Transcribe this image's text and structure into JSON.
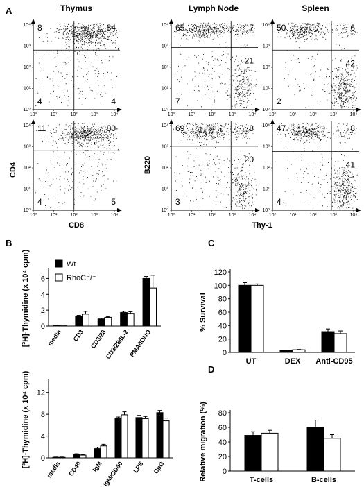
{
  "panel_a": {
    "letter": "A",
    "columns": [
      "Thymus",
      "Lymph Node",
      "Spleen"
    ],
    "thymus_ylabel": "CD4",
    "thymus_xlabel": "CD8",
    "lnsp_ylabel": "B220",
    "lnsp_xlabel": "Thy-1",
    "tick_labels": [
      "10⁰",
      "10¹",
      "10²",
      "10³",
      "10⁴"
    ],
    "plots": [
      {
        "name": "thymus-top",
        "quadrants": {
          "ul": "8",
          "ur": "84",
          "ll": "4",
          "lr": "4"
        }
      },
      {
        "name": "thymus-bottom",
        "quadrants": {
          "ul": "11",
          "ur": "80",
          "ll": "4",
          "lr": "5"
        }
      },
      {
        "name": "lymph-top",
        "quadrants": {
          "ul": "65",
          "ur": "7",
          "ll": "7",
          "lr": "21"
        }
      },
      {
        "name": "lymph-bottom",
        "quadrants": {
          "ul": "69",
          "ur": "8",
          "ll": "3",
          "lr": "20"
        }
      },
      {
        "name": "spleen-top",
        "quadrants": {
          "ul": "50",
          "ur": "6",
          "ll": "2",
          "lr": "42"
        }
      },
      {
        "name": "spleen-bottom",
        "quadrants": {
          "ul": "47",
          "ur": "8",
          "ll": "4",
          "lr": "41"
        }
      }
    ]
  },
  "chart_data": [
    {
      "id": "B-top",
      "type": "bar",
      "panel_letter": "B",
      "ylabel": "[³H]-Thymidine (x 10⁴ cpm)",
      "ylim": [
        0,
        7
      ],
      "yticks": [
        "0",
        "2",
        "4",
        "6"
      ],
      "categories": [
        "media",
        "CD3",
        "CD3/28",
        "CD3/28/IL-2",
        "PMA/IONO"
      ],
      "legend": [
        "Wt",
        "RhoC⁻/⁻"
      ],
      "series": [
        {
          "name": "Wt",
          "values": [
            0.1,
            1.2,
            0.9,
            1.7,
            6.0
          ],
          "errors": [
            0.03,
            0.15,
            0.1,
            0.15,
            0.25
          ]
        },
        {
          "name": "RhoC⁻/⁻",
          "values": [
            0.1,
            1.5,
            1.1,
            1.6,
            4.8
          ],
          "errors": [
            0.03,
            0.35,
            0.1,
            0.2,
            1.6
          ]
        }
      ]
    },
    {
      "id": "B-bottom",
      "type": "bar",
      "ylabel": "[³H]-Thymidine (x 10⁴ cpm)",
      "ylim": [
        0,
        14
      ],
      "yticks": [
        "0",
        "4",
        "8",
        "12"
      ],
      "categories": [
        "media",
        "CD40",
        "IgM",
        "IgM/CD40",
        "LPS",
        "CpG"
      ],
      "series": [
        {
          "name": "Wt",
          "values": [
            0.1,
            0.6,
            1.7,
            7.3,
            7.4,
            8.3
          ],
          "errors": [
            0.05,
            0.15,
            0.25,
            0.2,
            0.4,
            0.4
          ]
        },
        {
          "name": "RhoC⁻/⁻",
          "values": [
            0.1,
            0.5,
            2.2,
            7.9,
            7.2,
            6.8
          ],
          "errors": [
            0.05,
            0.1,
            0.3,
            0.55,
            0.4,
            0.5
          ]
        }
      ]
    },
    {
      "id": "C",
      "type": "bar",
      "panel_letter": "C",
      "ylabel": "% Survival",
      "ylim": [
        0,
        120
      ],
      "yticks": [
        "0",
        "20",
        "40",
        "60",
        "80",
        "100",
        "120"
      ],
      "categories": [
        "UT",
        "DEX",
        "Anti-CD95"
      ],
      "series": [
        {
          "name": "Wt",
          "values": [
            100,
            3,
            31
          ],
          "errors": [
            4,
            0.5,
            4
          ]
        },
        {
          "name": "RhoC⁻/⁻",
          "values": [
            100,
            4,
            28
          ],
          "errors": [
            2,
            0.5,
            4
          ]
        }
      ]
    },
    {
      "id": "D",
      "type": "bar",
      "panel_letter": "D",
      "ylabel": "Relative migration (%)",
      "ylim": [
        0,
        80
      ],
      "yticks": [
        "0",
        "20",
        "40",
        "60",
        "80"
      ],
      "categories": [
        "T-cells",
        "B-cells"
      ],
      "series": [
        {
          "name": "Wt",
          "values": [
            49,
            60
          ],
          "errors": [
            5,
            10
          ]
        },
        {
          "name": "RhoC⁻/⁻",
          "values": [
            52,
            45
          ],
          "errors": [
            4,
            5
          ]
        }
      ]
    }
  ]
}
